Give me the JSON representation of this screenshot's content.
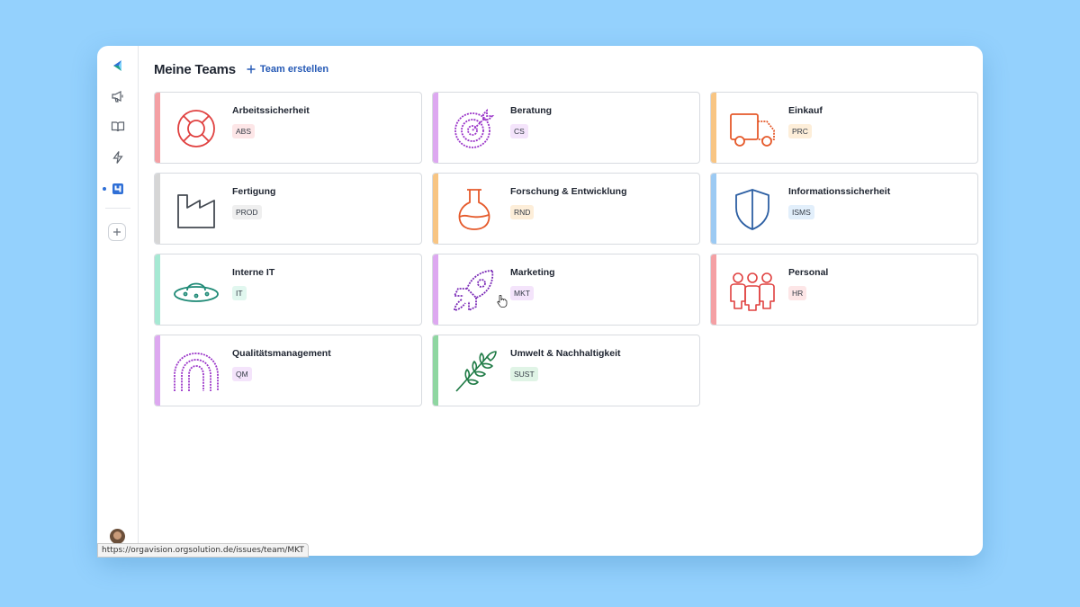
{
  "header": {
    "title": "Meine Teams",
    "create_label": "Team erstellen"
  },
  "sidebar": {
    "items": [
      {
        "icon": "app-logo-icon"
      },
      {
        "icon": "megaphone-icon"
      },
      {
        "icon": "book-icon"
      },
      {
        "icon": "lightning-icon"
      },
      {
        "icon": "teams-icon",
        "active": true
      },
      {
        "icon": "plus-icon"
      }
    ]
  },
  "teams": [
    {
      "name": "Arbeitssicherheit",
      "code": "ABS",
      "color": "#f4a0a4",
      "badge_bg": "#fde6e7",
      "icon": "lifebuoy-icon",
      "icon_color": "#e0403f"
    },
    {
      "name": "Beratung",
      "code": "CS",
      "color": "#dda8f0",
      "badge_bg": "#f4e4fb",
      "icon": "target-icon",
      "icon_color": "#9b36c9"
    },
    {
      "name": "Einkauf",
      "code": "PRC",
      "color": "#f8c583",
      "badge_bg": "#fdeed9",
      "icon": "truck-icon",
      "icon_color": "#e55a2b"
    },
    {
      "name": "Fertigung",
      "code": "PROD",
      "color": "#d6d6d6",
      "badge_bg": "#efefef",
      "icon": "factory-icon",
      "icon_color": "#444a52"
    },
    {
      "name": "Forschung & Entwicklung",
      "code": "RND",
      "color": "#f8c583",
      "badge_bg": "#fdeed9",
      "icon": "flask-icon",
      "icon_color": "#e55a2b"
    },
    {
      "name": "Informationssicherheit",
      "code": "ISMS",
      "color": "#9ccaf3",
      "badge_bg": "#e2effb",
      "icon": "shield-icon",
      "icon_color": "#2c5fa3"
    },
    {
      "name": "Interne IT",
      "code": "IT",
      "color": "#a6e9d3",
      "badge_bg": "#e1f7ef",
      "icon": "ufo-icon",
      "icon_color": "#1f8a76"
    },
    {
      "name": "Marketing",
      "code": "MKT",
      "color": "#dda8f0",
      "badge_bg": "#f4e4fb",
      "icon": "rocket-icon",
      "icon_color": "#7b2bb7"
    },
    {
      "name": "Personal",
      "code": "HR",
      "color": "#f4a0a4",
      "badge_bg": "#fde6e7",
      "icon": "people-icon",
      "icon_color": "#e0403f"
    },
    {
      "name": "Qualitätsmanagement",
      "code": "QM",
      "color": "#dda8f0",
      "badge_bg": "#f4e4fb",
      "icon": "rainbow-icon",
      "icon_color": "#9b36c9"
    },
    {
      "name": "Umwelt & Nachhaltigkeit",
      "code": "SUST",
      "color": "#8fd6a1",
      "badge_bg": "#e0f4e6",
      "icon": "leaf-branch-icon",
      "icon_color": "#1e7a45"
    }
  ],
  "status_bar": {
    "url": "https://orgavision.orgsolution.de/issues/team/MKT"
  }
}
